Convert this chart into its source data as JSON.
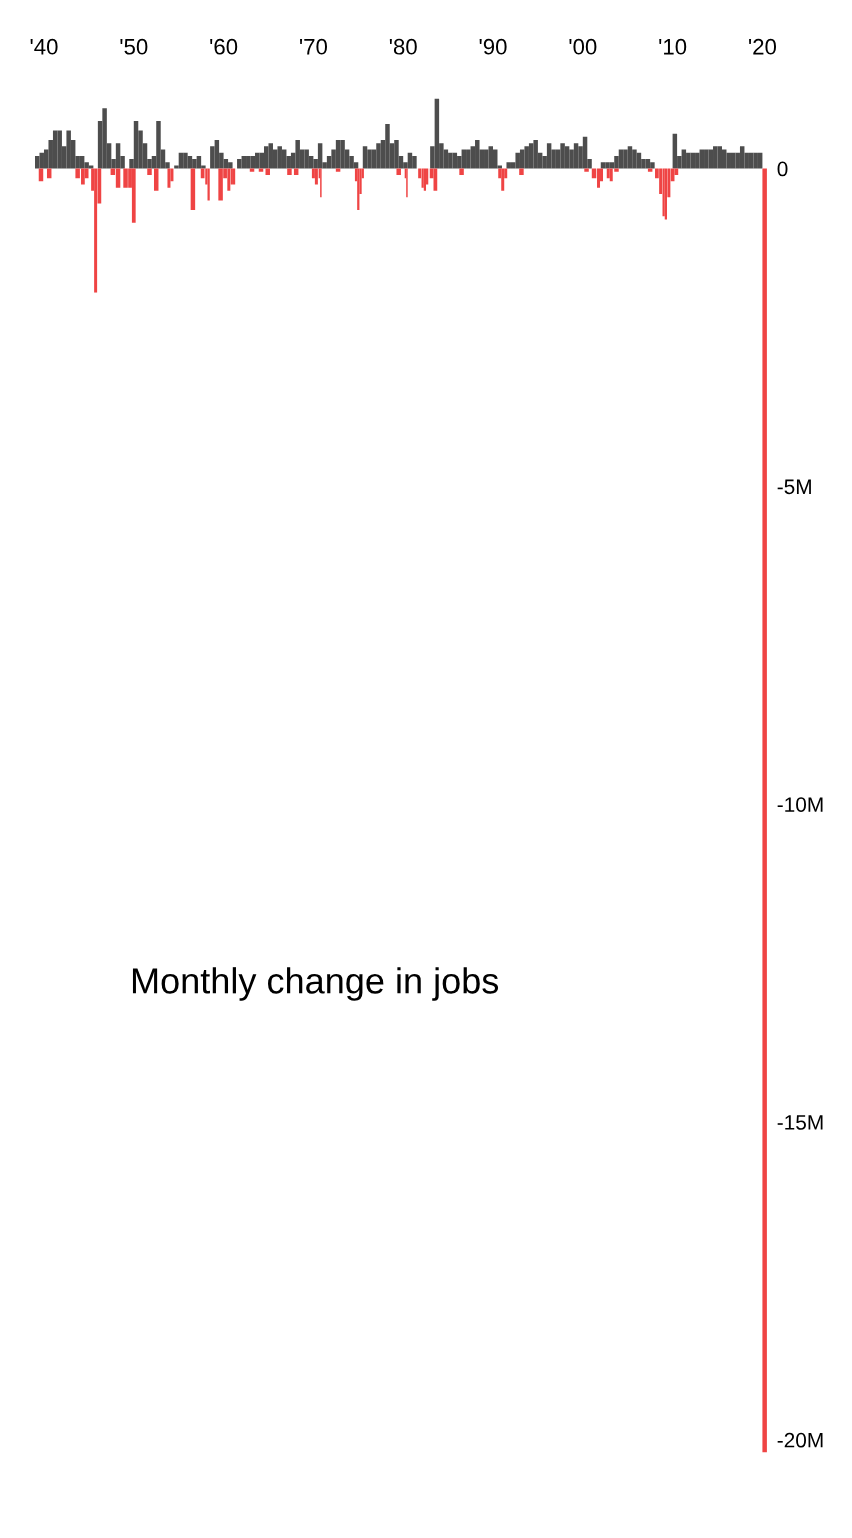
{
  "chart_data": {
    "type": "bar",
    "title": "Monthly change in jobs",
    "series": [
      {
        "color": "#4d4d4d",
        "x": [
          "1939-04",
          "1939-10",
          "1940-04",
          "1940-10",
          "1941-04",
          "1941-10",
          "1942-04",
          "1942-10",
          "1943-04",
          "1943-10",
          "1944-04",
          "1944-10",
          "1945-04",
          "1946-04",
          "1946-10",
          "1947-04",
          "1947-10",
          "1948-04",
          "1948-10",
          "1949-10",
          "1950-04",
          "1950-10",
          "1951-04",
          "1951-10",
          "1952-04",
          "1952-10",
          "1953-04",
          "1953-10",
          "1954-10",
          "1955-04",
          "1955-10",
          "1956-04",
          "1956-10",
          "1957-04",
          "1957-10",
          "1958-10",
          "1959-04",
          "1959-10",
          "1960-04",
          "1960-10",
          "1961-10",
          "1962-04",
          "1962-10",
          "1963-04",
          "1963-10",
          "1964-04",
          "1964-10",
          "1965-04",
          "1965-10",
          "1966-04",
          "1966-10",
          "1967-04",
          "1967-10",
          "1968-04",
          "1968-10",
          "1969-04",
          "1969-10",
          "1970-04",
          "1970-10",
          "1971-04",
          "1971-10",
          "1972-04",
          "1972-10",
          "1973-04",
          "1973-10",
          "1974-04",
          "1974-10",
          "1975-10",
          "1976-04",
          "1976-10",
          "1977-04",
          "1977-10",
          "1978-04",
          "1978-10",
          "1979-04",
          "1979-10",
          "1980-04",
          "1980-10",
          "1981-04",
          "1983-04",
          "1983-10",
          "1984-04",
          "1984-10",
          "1985-04",
          "1985-10",
          "1986-04",
          "1986-10",
          "1987-04",
          "1987-10",
          "1988-04",
          "1988-10",
          "1989-04",
          "1989-10",
          "1990-04",
          "1990-10",
          "1991-10",
          "1992-04",
          "1992-10",
          "1993-04",
          "1993-10",
          "1994-04",
          "1994-10",
          "1995-04",
          "1995-10",
          "1996-04",
          "1996-10",
          "1997-04",
          "1997-10",
          "1998-04",
          "1998-10",
          "1999-04",
          "1999-10",
          "2000-04",
          "2000-10",
          "2002-04",
          "2002-10",
          "2003-04",
          "2003-10",
          "2004-04",
          "2004-10",
          "2005-04",
          "2005-10",
          "2006-04",
          "2006-10",
          "2007-04",
          "2007-10",
          "2010-04",
          "2010-10",
          "2011-04",
          "2011-10",
          "2012-04",
          "2012-10",
          "2013-04",
          "2013-10",
          "2014-04",
          "2014-10",
          "2015-04",
          "2015-10",
          "2016-04",
          "2016-10",
          "2017-04",
          "2017-10",
          "2018-04",
          "2018-10",
          "2019-04",
          "2019-10"
        ],
        "values": [
          0.2,
          0.25,
          0.3,
          0.45,
          0.6,
          0.6,
          0.35,
          0.6,
          0.45,
          0.2,
          0.2,
          0.1,
          0.05,
          0.75,
          0.95,
          0.4,
          0.15,
          0.4,
          0.2,
          0.15,
          0.75,
          0.6,
          0.4,
          0.15,
          0.2,
          0.75,
          0.3,
          0.1,
          0.05,
          0.25,
          0.25,
          0.2,
          0.15,
          0.2,
          0.05,
          0.35,
          0.45,
          0.25,
          0.15,
          0.1,
          0.15,
          0.2,
          0.2,
          0.2,
          0.25,
          0.25,
          0.35,
          0.4,
          0.3,
          0.35,
          0.3,
          0.2,
          0.25,
          0.45,
          0.3,
          0.3,
          0.2,
          0.15,
          0.4,
          0.1,
          0.2,
          0.3,
          0.45,
          0.45,
          0.3,
          0.2,
          0.1,
          0.35,
          0.3,
          0.3,
          0.4,
          0.45,
          0.7,
          0.4,
          0.45,
          0.2,
          0.1,
          0.25,
          0.2,
          0.35,
          1.1,
          0.4,
          0.3,
          0.25,
          0.25,
          0.2,
          0.3,
          0.3,
          0.35,
          0.45,
          0.3,
          0.3,
          0.35,
          0.3,
          0.05,
          0.1,
          0.1,
          0.25,
          0.3,
          0.35,
          0.4,
          0.45,
          0.25,
          0.2,
          0.4,
          0.3,
          0.3,
          0.4,
          0.35,
          0.3,
          0.4,
          0.35,
          0.5,
          0.15,
          0.1,
          0.1,
          0.1,
          0.2,
          0.3,
          0.3,
          0.35,
          0.3,
          0.25,
          0.15,
          0.15,
          0.1,
          0.55,
          0.2,
          0.3,
          0.25,
          0.25,
          0.25,
          0.3,
          0.3,
          0.3,
          0.35,
          0.35,
          0.3,
          0.25,
          0.25,
          0.25,
          0.35,
          0.25,
          0.25,
          0.25,
          0.25
        ]
      },
      {
        "color": "#ef4444",
        "x": [
          "1939-09",
          "1940-08",
          "1943-10",
          "1944-05",
          "1944-10",
          "1945-06",
          "1945-10",
          "1946-03",
          "1947-09",
          "1948-04",
          "1949-02",
          "1949-08",
          "1950-01",
          "1951-10",
          "1952-07",
          "1953-12",
          "1954-04",
          "1956-08",
          "1957-09",
          "1958-02",
          "1958-05",
          "1959-09",
          "1960-03",
          "1960-08",
          "1960-12",
          "1961-03",
          "1963-03",
          "1964-03",
          "1964-12",
          "1967-05",
          "1968-02",
          "1970-01",
          "1970-05",
          "1970-09",
          "1970-11",
          "1972-10",
          "1974-10",
          "1975-01",
          "1975-04",
          "1975-07",
          "1979-07",
          "1980-04",
          "1980-06",
          "1981-11",
          "1982-03",
          "1982-06",
          "1982-09",
          "1983-03",
          "1983-08",
          "1986-07",
          "1990-10",
          "1991-02",
          "1991-06",
          "1993-03",
          "2000-06",
          "2001-04",
          "2001-10",
          "2002-02",
          "2002-11",
          "2003-03",
          "2003-10",
          "2007-07",
          "2008-04",
          "2008-09",
          "2009-01",
          "2009-04",
          "2009-08",
          "2010-01",
          "2010-06",
          "2020-04"
        ],
        "values": [
          -0.2,
          -0.15,
          -0.15,
          -0.25,
          -0.15,
          -0.35,
          -1.95,
          -0.55,
          -0.1,
          -0.3,
          -0.3,
          -0.3,
          -0.85,
          -0.1,
          -0.35,
          -0.3,
          -0.2,
          -0.65,
          -0.15,
          -0.25,
          -0.5,
          -0.5,
          -0.15,
          -0.35,
          -0.25,
          -0.25,
          -0.05,
          -0.05,
          -0.1,
          -0.1,
          -0.1,
          -0.15,
          -0.25,
          -0.15,
          -0.45,
          -0.05,
          -0.2,
          -0.65,
          -0.4,
          -0.15,
          -0.1,
          -0.15,
          -0.45,
          -0.15,
          -0.3,
          -0.35,
          -0.25,
          -0.15,
          -0.35,
          -0.1,
          -0.15,
          -0.35,
          -0.15,
          -0.1,
          -0.05,
          -0.15,
          -0.3,
          -0.2,
          -0.15,
          -0.2,
          -0.05,
          -0.05,
          -0.15,
          -0.4,
          -0.75,
          -0.8,
          -0.45,
          -0.2,
          -0.1,
          -20.2
        ]
      }
    ],
    "xlim": [
      "1939-01",
      "2020-09"
    ],
    "xticks": [
      {
        "value": "1940",
        "label": "'40"
      },
      {
        "value": "1950",
        "label": "'50"
      },
      {
        "value": "1960",
        "label": "'60"
      },
      {
        "value": "1970",
        "label": "'70"
      },
      {
        "value": "1980",
        "label": "'80"
      },
      {
        "value": "1990",
        "label": "'90"
      },
      {
        "value": "2000",
        "label": "'00"
      },
      {
        "value": "2010",
        "label": "'10"
      },
      {
        "value": "2020",
        "label": "'20"
      }
    ],
    "ylim": [
      -20.2,
      1.2
    ],
    "yticks": [
      0,
      {
        "value": -5,
        "label": "-5M"
      },
      {
        "value": -10,
        "label": "-10M"
      },
      {
        "value": -15,
        "label": "-15M"
      },
      {
        "value": -20,
        "label": "-20M"
      }
    ]
  }
}
